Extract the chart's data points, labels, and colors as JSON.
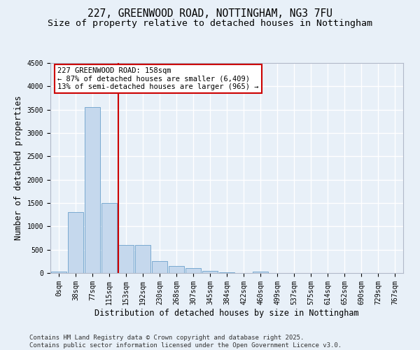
{
  "title_line1": "227, GREENWOOD ROAD, NOTTINGHAM, NG3 7FU",
  "title_line2": "Size of property relative to detached houses in Nottingham",
  "xlabel": "Distribution of detached houses by size in Nottingham",
  "ylabel": "Number of detached properties",
  "background_color": "#e8f0f8",
  "bar_color": "#c5d8ed",
  "bar_edge_color": "#7aaad0",
  "grid_color": "#ffffff",
  "categories": [
    "0sqm",
    "38sqm",
    "77sqm",
    "115sqm",
    "153sqm",
    "192sqm",
    "230sqm",
    "268sqm",
    "307sqm",
    "345sqm",
    "384sqm",
    "422sqm",
    "460sqm",
    "499sqm",
    "537sqm",
    "575sqm",
    "614sqm",
    "652sqm",
    "690sqm",
    "729sqm",
    "767sqm"
  ],
  "values": [
    30,
    1300,
    3550,
    1500,
    600,
    600,
    250,
    150,
    100,
    50,
    10,
    0,
    30,
    0,
    0,
    0,
    0,
    0,
    0,
    0,
    0
  ],
  "ylim": [
    0,
    4500
  ],
  "yticks": [
    0,
    500,
    1000,
    1500,
    2000,
    2500,
    3000,
    3500,
    4000,
    4500
  ],
  "property_line_x": 3.55,
  "annotation_text_line1": "227 GREENWOOD ROAD: 158sqm",
  "annotation_text_line2": "← 87% of detached houses are smaller (6,409)",
  "annotation_text_line3": "13% of semi-detached houses are larger (965) →",
  "annotation_box_facecolor": "#ffffff",
  "annotation_box_edgecolor": "#cc0000",
  "vline_color": "#cc0000",
  "footer_line1": "Contains HM Land Registry data © Crown copyright and database right 2025.",
  "footer_line2": "Contains public sector information licensed under the Open Government Licence v3.0.",
  "title_fontsize": 10.5,
  "subtitle_fontsize": 9.5,
  "axis_label_fontsize": 8.5,
  "tick_fontsize": 7,
  "annotation_fontsize": 7.5,
  "footer_fontsize": 6.5
}
